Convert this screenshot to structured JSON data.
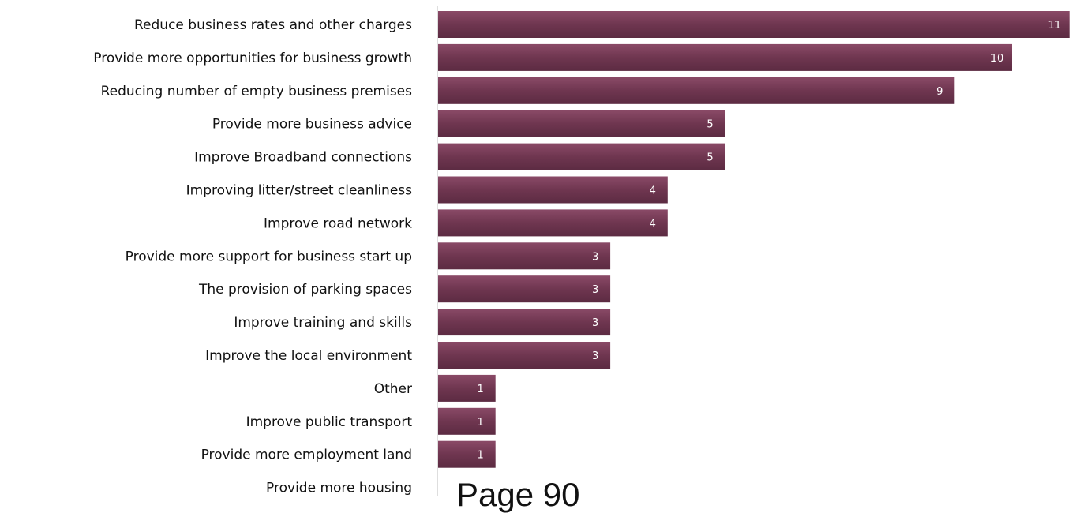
{
  "chart_data": {
    "type": "bar",
    "orientation": "horizontal",
    "categories": [
      "Reduce business rates and other charges",
      "Provide more opportunities for business growth",
      "Reducing number of empty business premises",
      "Provide more business advice",
      "Improve Broadband connections",
      "Improving litter/street cleanliness",
      "Improve road network",
      "Provide more support for business start up",
      "The provision of parking spaces",
      "Improve training and skills",
      "Improve the local environment",
      "Other",
      "Improve public transport",
      "Provide more employment land",
      "Provide more housing"
    ],
    "values": [
      11,
      10,
      9,
      5,
      5,
      4,
      4,
      3,
      3,
      3,
      3,
      1,
      1,
      1,
      null
    ],
    "data_labels": [
      "11",
      "10",
      "9",
      "5",
      "5",
      "4",
      "4",
      "3",
      "3",
      "3",
      "3",
      "1",
      "1",
      "1",
      ""
    ],
    "xlim": [
      0,
      11
    ],
    "grid": false,
    "legend": "none",
    "bar_color": "#6f3650"
  },
  "footer": {
    "page_label": "Page 90"
  }
}
